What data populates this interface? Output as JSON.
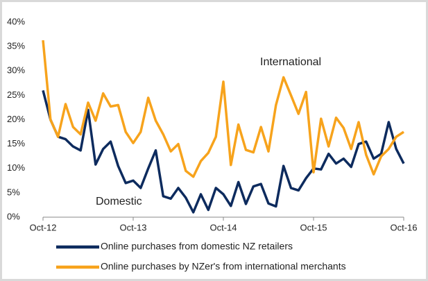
{
  "chart_data": {
    "type": "line",
    "categories": [
      "Oct-12",
      null,
      null,
      null,
      null,
      null,
      null,
      null,
      null,
      null,
      null,
      null,
      "Oct-13",
      null,
      null,
      null,
      null,
      null,
      null,
      null,
      null,
      null,
      null,
      null,
      "Oct-14",
      null,
      null,
      null,
      null,
      null,
      null,
      null,
      null,
      null,
      null,
      null,
      "Oct-15",
      null,
      null,
      null,
      null,
      null,
      null,
      null,
      null,
      null,
      null,
      null,
      "Oct-16"
    ],
    "series": [
      {
        "name": "Online purchases from domestic NZ retailers",
        "color": "#0d2b5e",
        "values": [
          26,
          20,
          16.5,
          16,
          14.5,
          13.7,
          22,
          10.8,
          14,
          15.5,
          10.5,
          7,
          7.5,
          6,
          10,
          13.7,
          4.3,
          3.8,
          6,
          4,
          1,
          4.7,
          1.5,
          6,
          4.7,
          2.3,
          7.2,
          2.7,
          6.3,
          6.8,
          2.8,
          2.2,
          10.5,
          6,
          5.5,
          8,
          10,
          9.8,
          13,
          11,
          12,
          10.3,
          15,
          15.5,
          12,
          13,
          19.5,
          14,
          11
        ]
      },
      {
        "name": "Online purchases by NZer's from international merchants",
        "color": "#f7a31c",
        "values": [
          36.3,
          20,
          16.5,
          23.2,
          18.5,
          17,
          23.5,
          19.8,
          25.4,
          22.7,
          23,
          17.5,
          15.2,
          17.5,
          24.5,
          19.8,
          17,
          13.5,
          15,
          9.5,
          8.3,
          11.5,
          13.2,
          16.5,
          27.8,
          10.7,
          19,
          13.8,
          13.3,
          18.5,
          13.5,
          23,
          28.7,
          25,
          21.2,
          25.7,
          9.2,
          20.2,
          14.5,
          20.4,
          18.3,
          14,
          19.5,
          12.8,
          8.8,
          12.5,
          14,
          16.5,
          17.5
        ]
      }
    ],
    "annotations": [
      "International",
      "Domestic"
    ],
    "ylim": [
      0,
      40
    ],
    "yticks": [
      {
        "value": 0,
        "label": "0%"
      },
      {
        "value": 5,
        "label": "5%"
      },
      {
        "value": 10,
        "label": "10%"
      },
      {
        "value": 15,
        "label": "15%"
      },
      {
        "value": 20,
        "label": "20%"
      },
      {
        "value": 25,
        "label": "25%"
      },
      {
        "value": 30,
        "label": "30%"
      },
      {
        "value": 35,
        "label": "35%"
      },
      {
        "value": 40,
        "label": "40%"
      }
    ],
    "grid": false,
    "legend": "bottom"
  }
}
